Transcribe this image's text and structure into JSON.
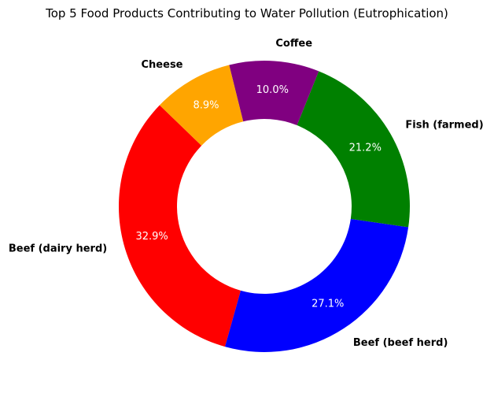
{
  "chart_data": {
    "type": "pie",
    "variant": "donut",
    "title": "Top 5 Food Products Contributing to Water Pollution (Eutrophication)",
    "categories": [
      "Beef (dairy herd)",
      "Beef (beef herd)",
      "Fish (farmed)",
      "Coffee",
      "Cheese"
    ],
    "values": [
      32.9,
      27.1,
      21.2,
      10.0,
      8.9
    ],
    "percent_labels": [
      "32.9%",
      "27.1%",
      "21.2%",
      "10.0%",
      "8.9%"
    ],
    "colors": [
      "#ff0000",
      "#0000ff",
      "#008000",
      "#800080",
      "#ffa500"
    ],
    "legend": "none"
  }
}
